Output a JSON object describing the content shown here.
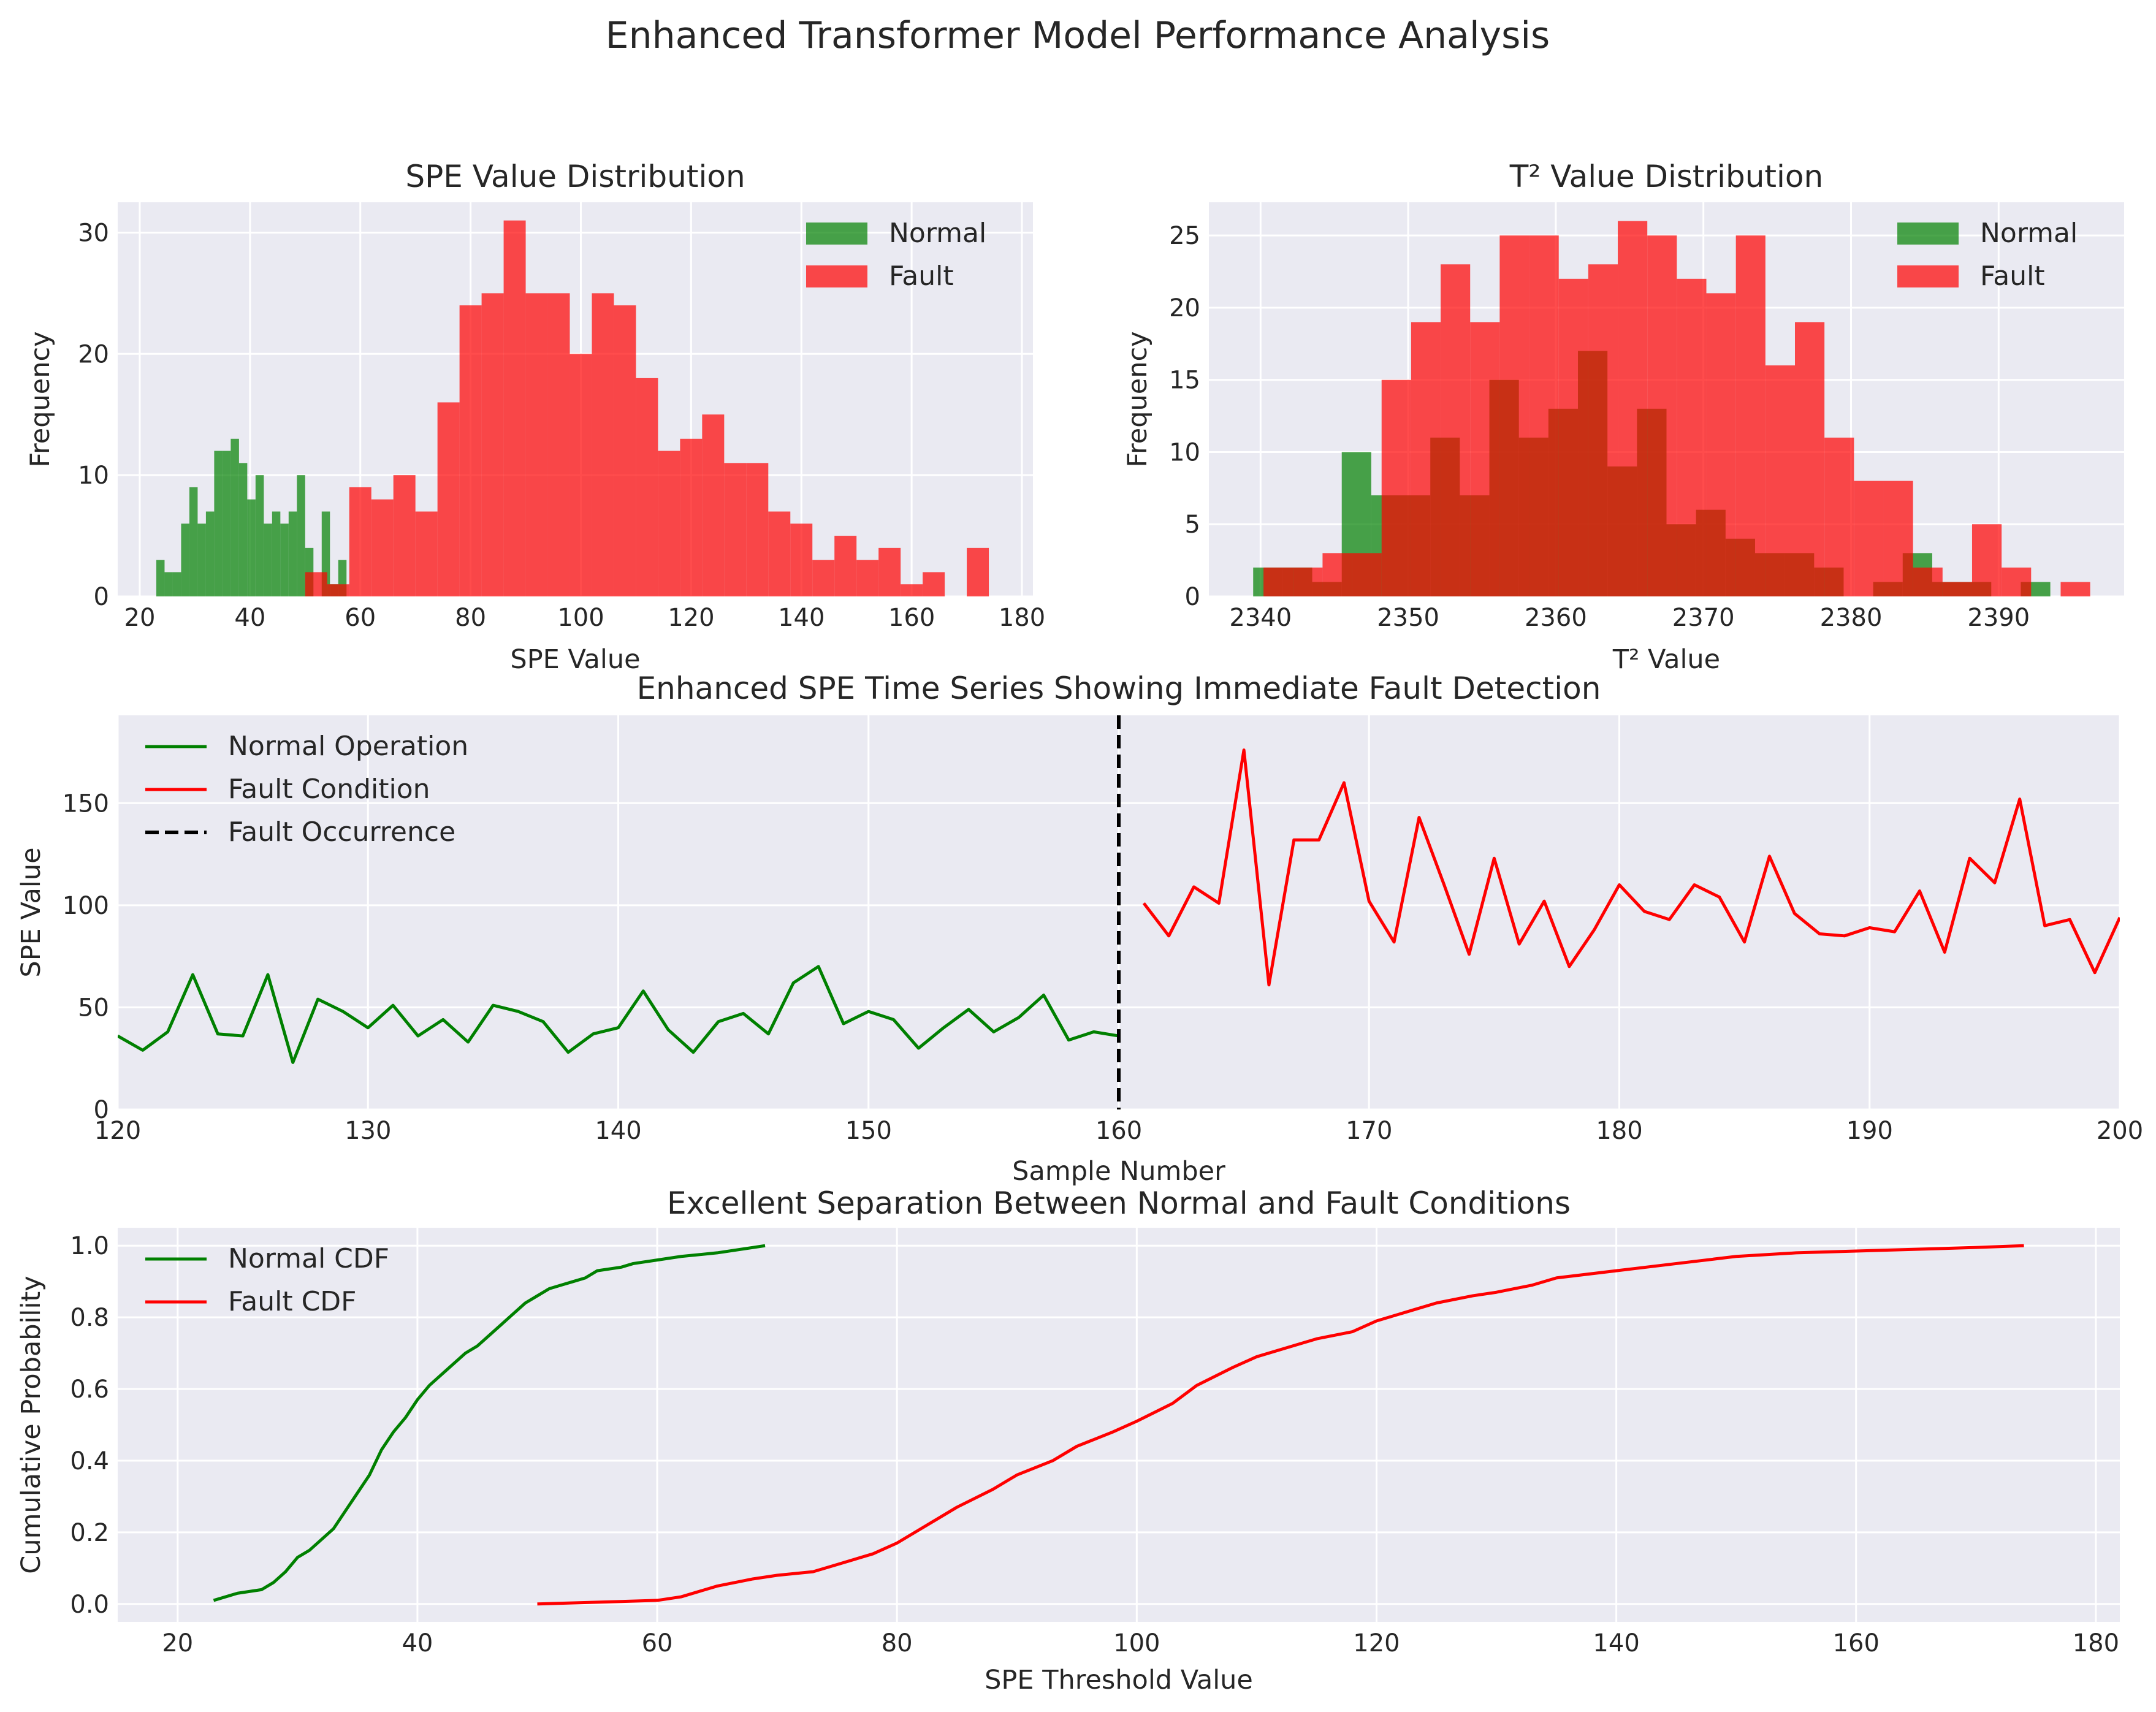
{
  "figure": {
    "title": "Enhanced Transformer Model Performance Analysis"
  },
  "colors": {
    "normal": "#008000",
    "fault": "#ff0000",
    "overlap": "#c93013",
    "background": "#EAEAF2"
  },
  "chart_data": [
    {
      "id": "spe_hist",
      "type": "bar",
      "title": "SPE Value Distribution",
      "xlabel": "SPE Value",
      "ylabel": "Frequency",
      "xlim": [
        16,
        182
      ],
      "ylim": [
        0,
        32.5
      ],
      "xticks": [
        20,
        40,
        60,
        80,
        100,
        120,
        140,
        160,
        180
      ],
      "yticks": [
        0,
        10,
        20,
        30
      ],
      "legend_position": "upper right",
      "series": [
        {
          "name": "Normal",
          "color": "#008000",
          "bins": [
            [
              23.0,
              24.5,
              3
            ],
            [
              24.5,
              26.0,
              2
            ],
            [
              26.0,
              27.5,
              2
            ],
            [
              27.5,
              29.0,
              6
            ],
            [
              29.0,
              30.5,
              9
            ],
            [
              30.5,
              32.0,
              6
            ],
            [
              32.0,
              33.5,
              7
            ],
            [
              33.5,
              35.0,
              12
            ],
            [
              35.0,
              36.5,
              12
            ],
            [
              36.5,
              38.0,
              13
            ],
            [
              38.0,
              39.5,
              11
            ],
            [
              39.5,
              41.0,
              8
            ],
            [
              41.0,
              42.5,
              10
            ],
            [
              42.5,
              44.0,
              6
            ],
            [
              44.0,
              45.5,
              7
            ],
            [
              45.5,
              47.0,
              6
            ],
            [
              47.0,
              48.5,
              7
            ],
            [
              48.5,
              50.0,
              10
            ],
            [
              50.0,
              51.5,
              4
            ],
            [
              51.5,
              53.0,
              0
            ],
            [
              53.0,
              54.5,
              7
            ],
            [
              54.5,
              56.0,
              1
            ],
            [
              56.0,
              57.5,
              3
            ],
            [
              57.5,
              59.0,
              0
            ]
          ]
        },
        {
          "name": "Fault",
          "color": "#ff0000",
          "bins": [
            [
              50.0,
              54.0,
              2
            ],
            [
              54.0,
              58.0,
              1
            ],
            [
              58.0,
              62.0,
              9
            ],
            [
              62.0,
              66.0,
              8
            ],
            [
              66.0,
              70.0,
              10
            ],
            [
              70.0,
              74.0,
              7
            ],
            [
              74.0,
              78.0,
              16
            ],
            [
              78.0,
              82.0,
              24
            ],
            [
              82.0,
              86.0,
              25
            ],
            [
              86.0,
              90.0,
              31
            ],
            [
              90.0,
              94.0,
              25
            ],
            [
              94.0,
              98.0,
              25
            ],
            [
              98.0,
              102.0,
              20
            ],
            [
              102.0,
              106.0,
              25
            ],
            [
              106.0,
              110.0,
              24
            ],
            [
              110.0,
              114.0,
              18
            ],
            [
              114.0,
              118.0,
              12
            ],
            [
              118.0,
              122.0,
              13
            ],
            [
              122.0,
              126.0,
              15
            ],
            [
              126.0,
              130.0,
              11
            ],
            [
              130.0,
              134.0,
              11
            ],
            [
              134.0,
              138.0,
              7
            ],
            [
              138.0,
              142.0,
              6
            ],
            [
              142.0,
              146.0,
              3
            ],
            [
              146.0,
              150.0,
              5
            ],
            [
              150.0,
              154.0,
              3
            ],
            [
              154.0,
              158.0,
              4
            ],
            [
              158.0,
              162.0,
              1
            ],
            [
              162.0,
              166.0,
              2
            ],
            [
              166.0,
              170.0,
              0
            ],
            [
              170.0,
              174.0,
              4
            ]
          ]
        }
      ]
    },
    {
      "id": "t2_hist",
      "type": "bar",
      "title": "T² Value Distribution",
      "xlabel": "T² Value",
      "ylabel": "Frequency",
      "xlim": [
        2336.5,
        2398.5
      ],
      "ylim": [
        0,
        27.3
      ],
      "xticks": [
        2340,
        2350,
        2360,
        2370,
        2380,
        2390
      ],
      "yticks": [
        0,
        5,
        10,
        15,
        20,
        25
      ],
      "legend_position": "upper right",
      "series": [
        {
          "name": "Normal",
          "color": "#008000",
          "bins": [
            [
              2339.5,
              2341.5,
              2
            ],
            [
              2341.5,
              2343.5,
              2
            ],
            [
              2343.5,
              2345.5,
              1
            ],
            [
              2345.5,
              2347.5,
              10
            ],
            [
              2347.5,
              2349.5,
              7
            ],
            [
              2349.5,
              2351.5,
              7
            ],
            [
              2351.5,
              2353.5,
              11
            ],
            [
              2353.5,
              2355.5,
              7
            ],
            [
              2355.5,
              2357.5,
              15
            ],
            [
              2357.5,
              2359.5,
              11
            ],
            [
              2359.5,
              2361.5,
              13
            ],
            [
              2361.5,
              2363.5,
              17
            ],
            [
              2363.5,
              2365.5,
              9
            ],
            [
              2365.5,
              2367.5,
              13
            ],
            [
              2367.5,
              2369.5,
              5
            ],
            [
              2369.5,
              2371.5,
              6
            ],
            [
              2371.5,
              2373.5,
              4
            ],
            [
              2373.5,
              2375.5,
              3
            ],
            [
              2375.5,
              2377.5,
              3
            ],
            [
              2377.5,
              2379.5,
              2
            ],
            [
              2379.5,
              2381.5,
              0
            ],
            [
              2381.5,
              2383.5,
              1
            ],
            [
              2383.5,
              2385.5,
              3
            ],
            [
              2385.5,
              2387.5,
              1
            ],
            [
              2387.5,
              2389.5,
              1
            ],
            [
              2389.5,
              2391.5,
              0
            ],
            [
              2391.5,
              2393.5,
              1
            ]
          ]
        },
        {
          "name": "Fault",
          "color": "#ff0000",
          "bins": [
            [
              2340.2,
              2342.2,
              2
            ],
            [
              2342.2,
              2344.2,
              2
            ],
            [
              2344.2,
              2346.2,
              3
            ],
            [
              2346.2,
              2348.2,
              3
            ],
            [
              2348.2,
              2350.2,
              15
            ],
            [
              2350.2,
              2352.2,
              19
            ],
            [
              2352.2,
              2354.2,
              23
            ],
            [
              2354.2,
              2356.2,
              19
            ],
            [
              2356.2,
              2358.2,
              25
            ],
            [
              2358.2,
              2360.2,
              25
            ],
            [
              2360.2,
              2362.2,
              22
            ],
            [
              2362.2,
              2364.2,
              23
            ],
            [
              2364.2,
              2366.2,
              26
            ],
            [
              2366.2,
              2368.2,
              25
            ],
            [
              2368.2,
              2370.2,
              22
            ],
            [
              2370.2,
              2372.2,
              21
            ],
            [
              2372.2,
              2374.2,
              25
            ],
            [
              2374.2,
              2376.2,
              16
            ],
            [
              2376.2,
              2378.2,
              19
            ],
            [
              2378.2,
              2380.2,
              11
            ],
            [
              2380.2,
              2382.2,
              8
            ],
            [
              2382.2,
              2384.2,
              8
            ],
            [
              2384.2,
              2386.2,
              2
            ],
            [
              2386.2,
              2388.2,
              1
            ],
            [
              2388.2,
              2390.2,
              5
            ],
            [
              2390.2,
              2392.2,
              2
            ],
            [
              2392.2,
              2394.2,
              0
            ],
            [
              2394.2,
              2396.2,
              1
            ]
          ]
        }
      ]
    },
    {
      "id": "spe_timeseries",
      "type": "line",
      "title": "Enhanced SPE Time Series Showing Immediate Fault Detection",
      "xlabel": "Sample Number",
      "ylabel": "SPE Value",
      "xlim": [
        120,
        200
      ],
      "ylim": [
        0,
        193
      ],
      "xticks": [
        120,
        130,
        140,
        150,
        160,
        170,
        180,
        190,
        200
      ],
      "yticks": [
        0,
        50,
        100,
        150
      ],
      "legend_position": "upper left",
      "vline": {
        "name": "Fault Occurrence",
        "x": 160,
        "color": "#000000"
      },
      "series": [
        {
          "name": "Normal Operation",
          "color": "#008000",
          "x": [
            120,
            121,
            122,
            123,
            124,
            125,
            126,
            127,
            128,
            129,
            130,
            131,
            132,
            133,
            134,
            135,
            136,
            137,
            138,
            139,
            140,
            141,
            142,
            143,
            144,
            145,
            146,
            147,
            148,
            149,
            150,
            151,
            152,
            153,
            154,
            155,
            156,
            157,
            158,
            159,
            160
          ],
          "y": [
            36,
            29,
            38,
            66,
            37,
            36,
            66,
            23,
            54,
            48,
            40,
            51,
            36,
            44,
            33,
            51,
            48,
            43,
            28,
            37,
            40,
            58,
            39,
            28,
            43,
            47,
            37,
            62,
            70,
            42,
            48,
            44,
            30,
            40,
            49,
            38,
            45,
            56,
            34,
            38,
            36
          ]
        },
        {
          "name": "Fault Condition",
          "color": "#ff0000",
          "x": [
            161,
            162,
            163,
            164,
            165,
            166,
            167,
            168,
            169,
            170,
            171,
            172,
            173,
            174,
            175,
            176,
            177,
            178,
            179,
            180,
            181,
            182,
            183,
            184,
            185,
            186,
            187,
            188,
            189,
            190,
            191,
            192,
            193,
            194,
            195,
            196,
            197,
            198,
            199,
            200
          ],
          "y": [
            101,
            85,
            109,
            101,
            176,
            61,
            132,
            132,
            160,
            102,
            82,
            143,
            110,
            76,
            123,
            81,
            102,
            70,
            88,
            110,
            97,
            93,
            110,
            104,
            82,
            124,
            96,
            86,
            85,
            89,
            87,
            107,
            77,
            123,
            111,
            152,
            90,
            93,
            67,
            94
          ]
        }
      ]
    },
    {
      "id": "spe_cdf",
      "type": "line",
      "title": "Excellent Separation Between Normal and Fault Conditions",
      "xlabel": "SPE Threshold Value",
      "ylabel": "Cumulative Probability",
      "xlim": [
        15,
        182
      ],
      "ylim": [
        -0.05,
        1.05
      ],
      "xticks": [
        20,
        40,
        60,
        80,
        100,
        120,
        140,
        160,
        180
      ],
      "yticks": [
        0.0,
        0.2,
        0.4,
        0.6,
        0.8,
        1.0
      ],
      "ytick_labels": [
        "0.0",
        "0.2",
        "0.4",
        "0.6",
        "0.8",
        "1.0"
      ],
      "legend_position": "upper left",
      "series": [
        {
          "name": "Normal CDF",
          "color": "#008000",
          "x": [
            23,
            25,
            27,
            28,
            29,
            30,
            31,
            32,
            33,
            34,
            35,
            36,
            37,
            38,
            39,
            40,
            41,
            42,
            43,
            44,
            45,
            46,
            47,
            48,
            49,
            50,
            51,
            52,
            53,
            54,
            55,
            57,
            58,
            60,
            62,
            65,
            69
          ],
          "y": [
            0.01,
            0.03,
            0.04,
            0.06,
            0.09,
            0.13,
            0.15,
            0.18,
            0.21,
            0.26,
            0.31,
            0.36,
            0.43,
            0.48,
            0.52,
            0.57,
            0.61,
            0.64,
            0.67,
            0.7,
            0.72,
            0.75,
            0.78,
            0.81,
            0.84,
            0.86,
            0.88,
            0.89,
            0.9,
            0.91,
            0.93,
            0.94,
            0.95,
            0.96,
            0.97,
            0.98,
            1.0
          ]
        },
        {
          "name": "Fault CDF",
          "color": "#ff0000",
          "x": [
            50,
            55,
            60,
            62,
            65,
            68,
            70,
            73,
            75,
            78,
            80,
            82,
            85,
            88,
            90,
            93,
            95,
            98,
            100,
            103,
            105,
            108,
            110,
            113,
            115,
            118,
            120,
            123,
            125,
            128,
            130,
            133,
            135,
            140,
            145,
            150,
            155,
            160,
            165,
            170,
            174
          ],
          "y": [
            0.0,
            0.005,
            0.01,
            0.02,
            0.05,
            0.07,
            0.08,
            0.09,
            0.11,
            0.14,
            0.17,
            0.21,
            0.27,
            0.32,
            0.36,
            0.4,
            0.44,
            0.48,
            0.51,
            0.56,
            0.61,
            0.66,
            0.69,
            0.72,
            0.74,
            0.76,
            0.79,
            0.82,
            0.84,
            0.86,
            0.87,
            0.89,
            0.91,
            0.93,
            0.95,
            0.97,
            0.98,
            0.985,
            0.99,
            0.995,
            1.0
          ]
        }
      ]
    }
  ]
}
